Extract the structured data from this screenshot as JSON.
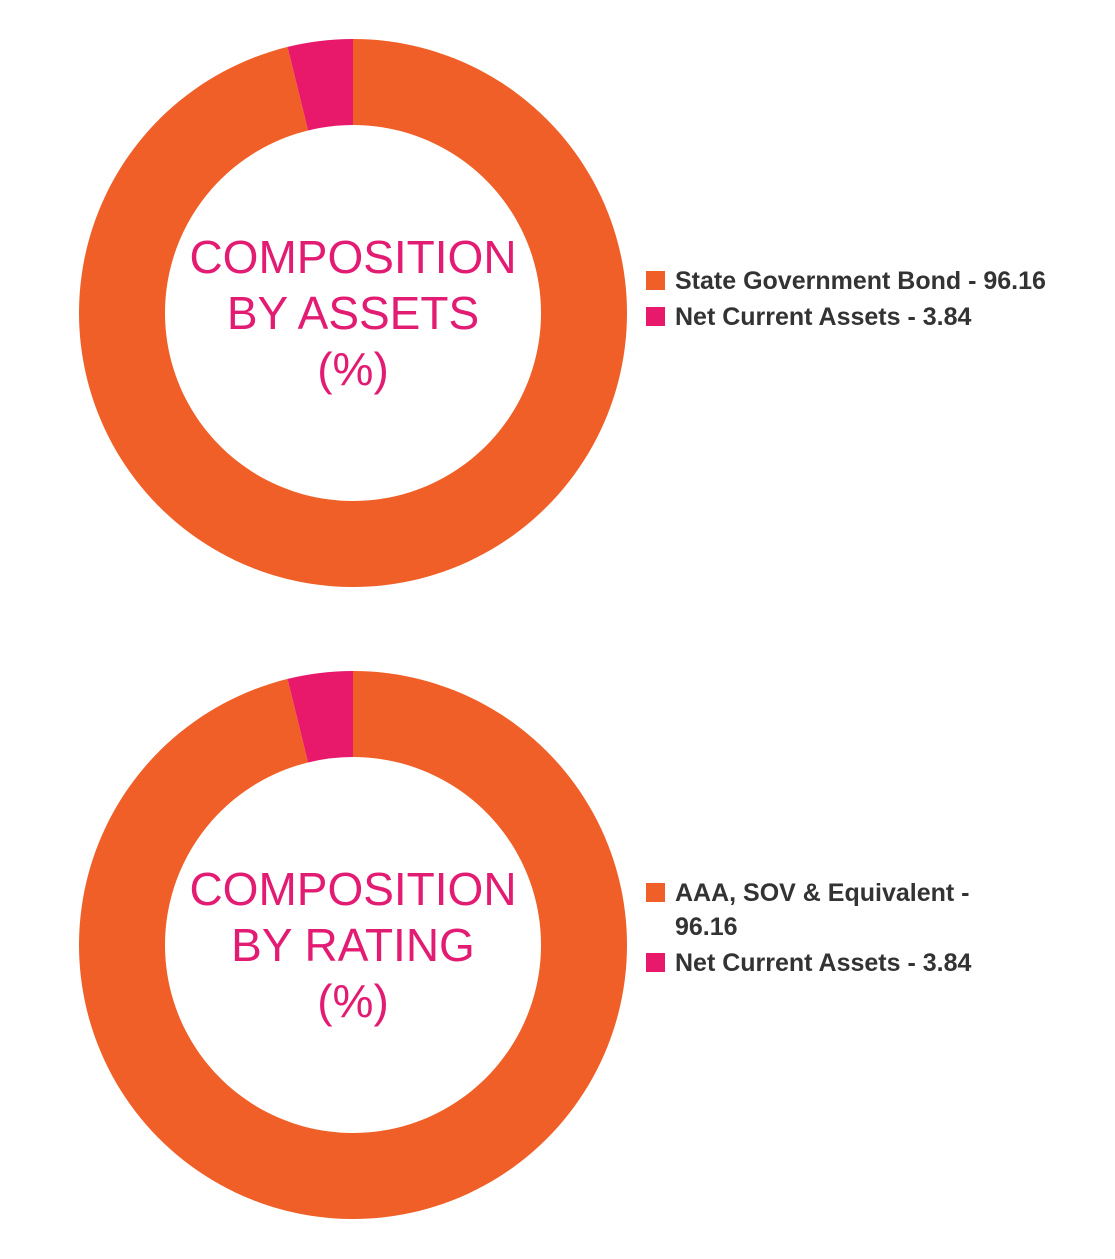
{
  "chart_data": [
    {
      "type": "pie",
      "title_lines": [
        "COMPOSITION",
        "BY ASSETS",
        "(%)"
      ],
      "series": [
        {
          "label": "State Government Bond - 96.16",
          "value": 96.16,
          "color": "#f05f27"
        },
        {
          "label": "Net Current Assets - 3.84",
          "value": 3.84,
          "color": "#e8196b"
        }
      ],
      "legend_position": "right"
    },
    {
      "type": "pie",
      "title_lines": [
        "COMPOSITION",
        "BY RATING",
        "(%)"
      ],
      "series": [
        {
          "label": "AAA, SOV & Equivalent - 96.16",
          "value": 96.16,
          "color": "#f05f27"
        },
        {
          "label": "Net Current Assets - 3.84",
          "value": 3.84,
          "color": "#e8196b"
        }
      ],
      "legend_position": "right"
    }
  ],
  "colors": {
    "title": "#e31c73",
    "legend_text": "#333333"
  }
}
